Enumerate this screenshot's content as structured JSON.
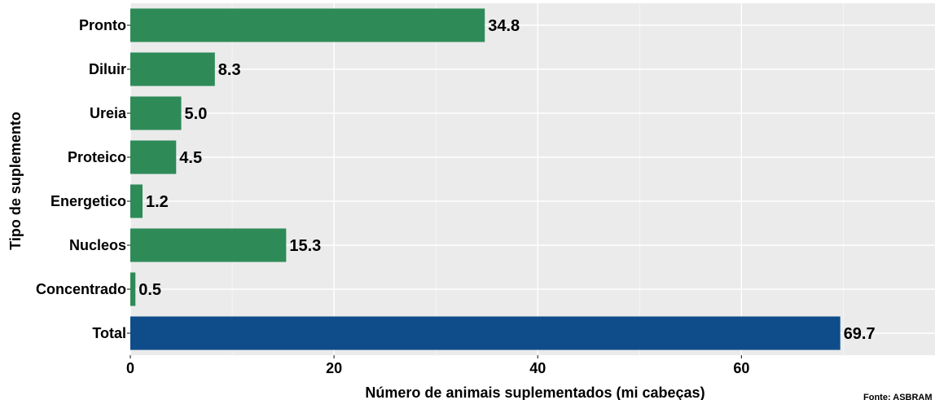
{
  "chart_data": {
    "type": "bar",
    "orientation": "horizontal",
    "categories": [
      "Pronto",
      "Diluir",
      "Ureia",
      "Proteico",
      "Energetico",
      "Nucleos",
      "Concentrado",
      "Total"
    ],
    "values": [
      34.8,
      8.3,
      5.0,
      4.5,
      1.2,
      15.3,
      0.5,
      69.7
    ],
    "value_labels": [
      "34.8",
      "8.3",
      "5.0",
      "4.5",
      "1.2",
      "15.3",
      "0.5",
      "69.7"
    ],
    "bar_colors": [
      "#2e8b57",
      "#2e8b57",
      "#2e8b57",
      "#2e8b57",
      "#2e8b57",
      "#2e8b57",
      "#2e8b57",
      "#0f4d8a"
    ],
    "xlabel": "Número de animais suplementados (mi cabeças)",
    "ylabel": "Tipo de suplemento",
    "xlim": [
      0,
      79
    ],
    "xticks": [
      0,
      20,
      40,
      60
    ],
    "grid": true,
    "panel_background": "#ebebeb",
    "caption": "Fonte: ASBRAM"
  }
}
